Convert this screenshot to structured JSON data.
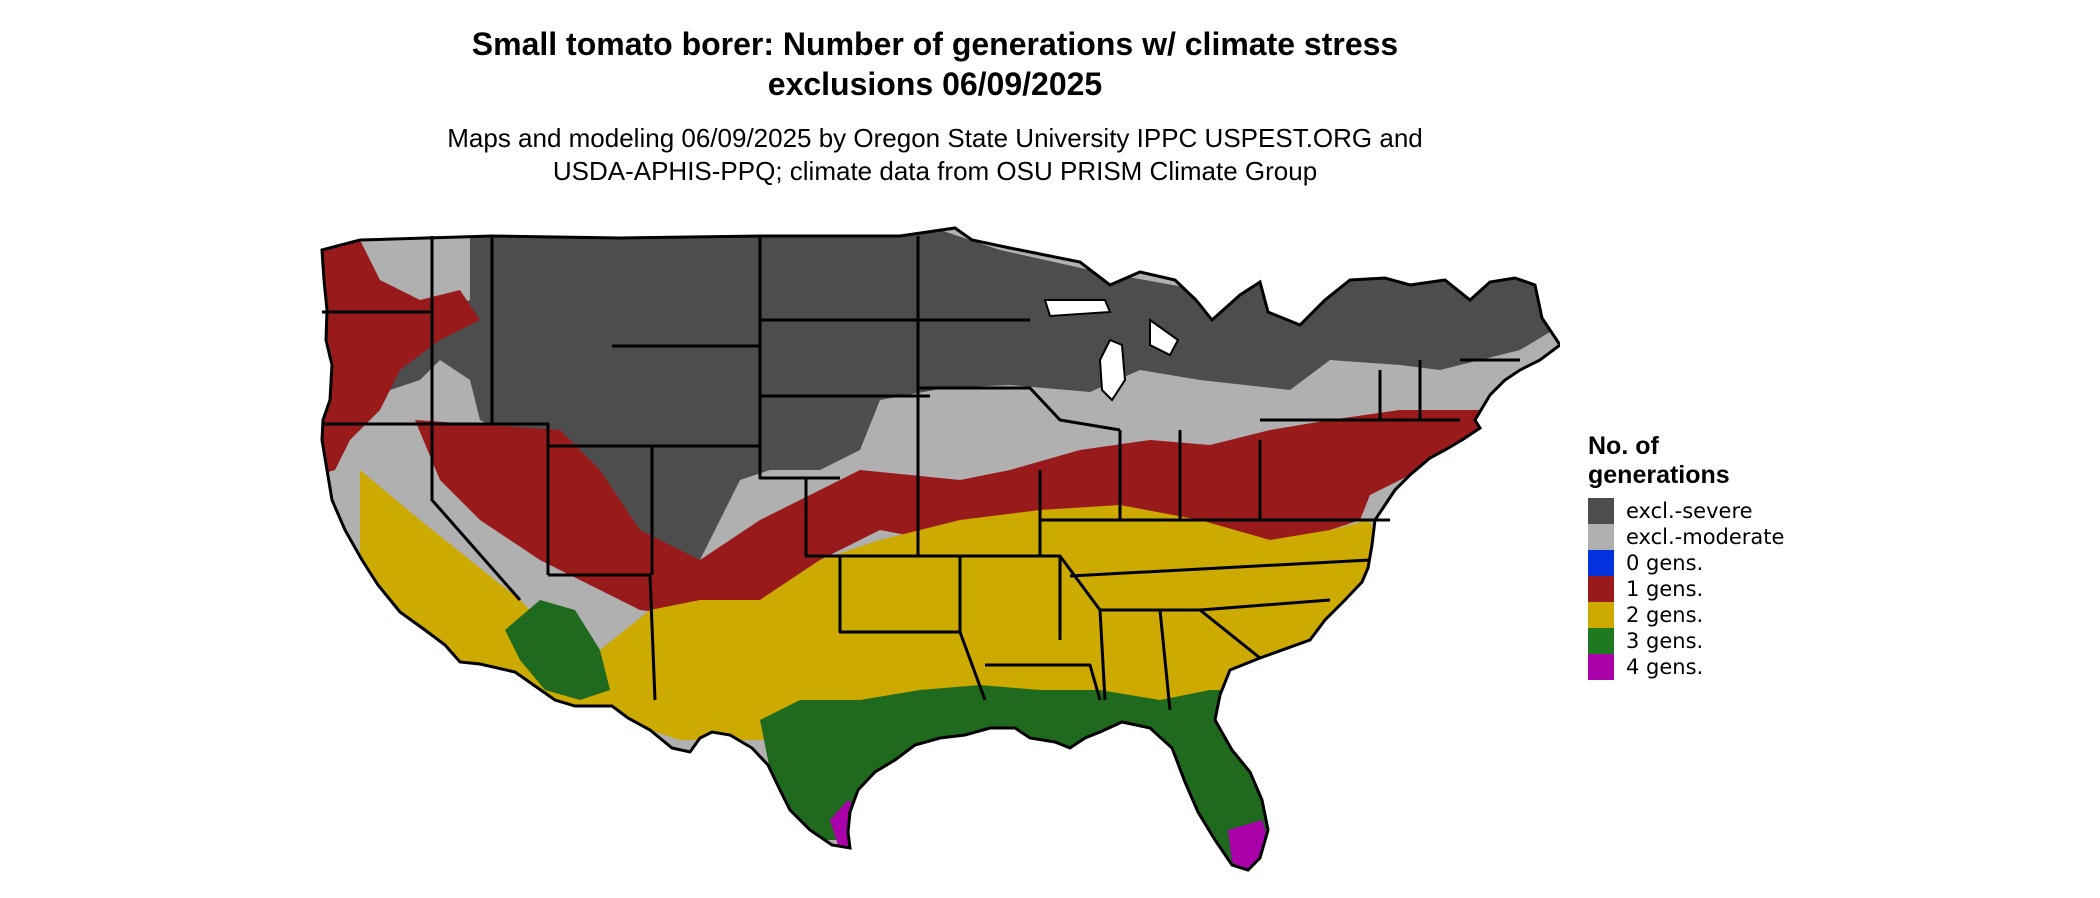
{
  "title_line1": "Small tomato borer: Number of generations w/ climate stress",
  "title_line2": "exclusions 06/09/2025",
  "subtitle_line1": "Maps and modeling 06/09/2025 by Oregon State University IPPC USPEST.ORG and",
  "subtitle_line2": "USDA-APHIS-PPQ; climate data from OSU PRISM Climate Group",
  "legend": {
    "title_line1": "No. of",
    "title_line2": "generations",
    "items": [
      {
        "label": "excl.-severe",
        "color": "#4d4d4d"
      },
      {
        "label": "excl.-moderate",
        "color": "#b0b0b0"
      },
      {
        "label": "0 gens.",
        "color": "#0033dd"
      },
      {
        "label": "1 gens.",
        "color": "#991a1a"
      },
      {
        "label": "2 gens.",
        "color": "#ccaa00"
      },
      {
        "label": "3 gens.",
        "color": "#1f7a1f"
      },
      {
        "label": "4 gens.",
        "color": "#aa00aa"
      }
    ]
  }
}
